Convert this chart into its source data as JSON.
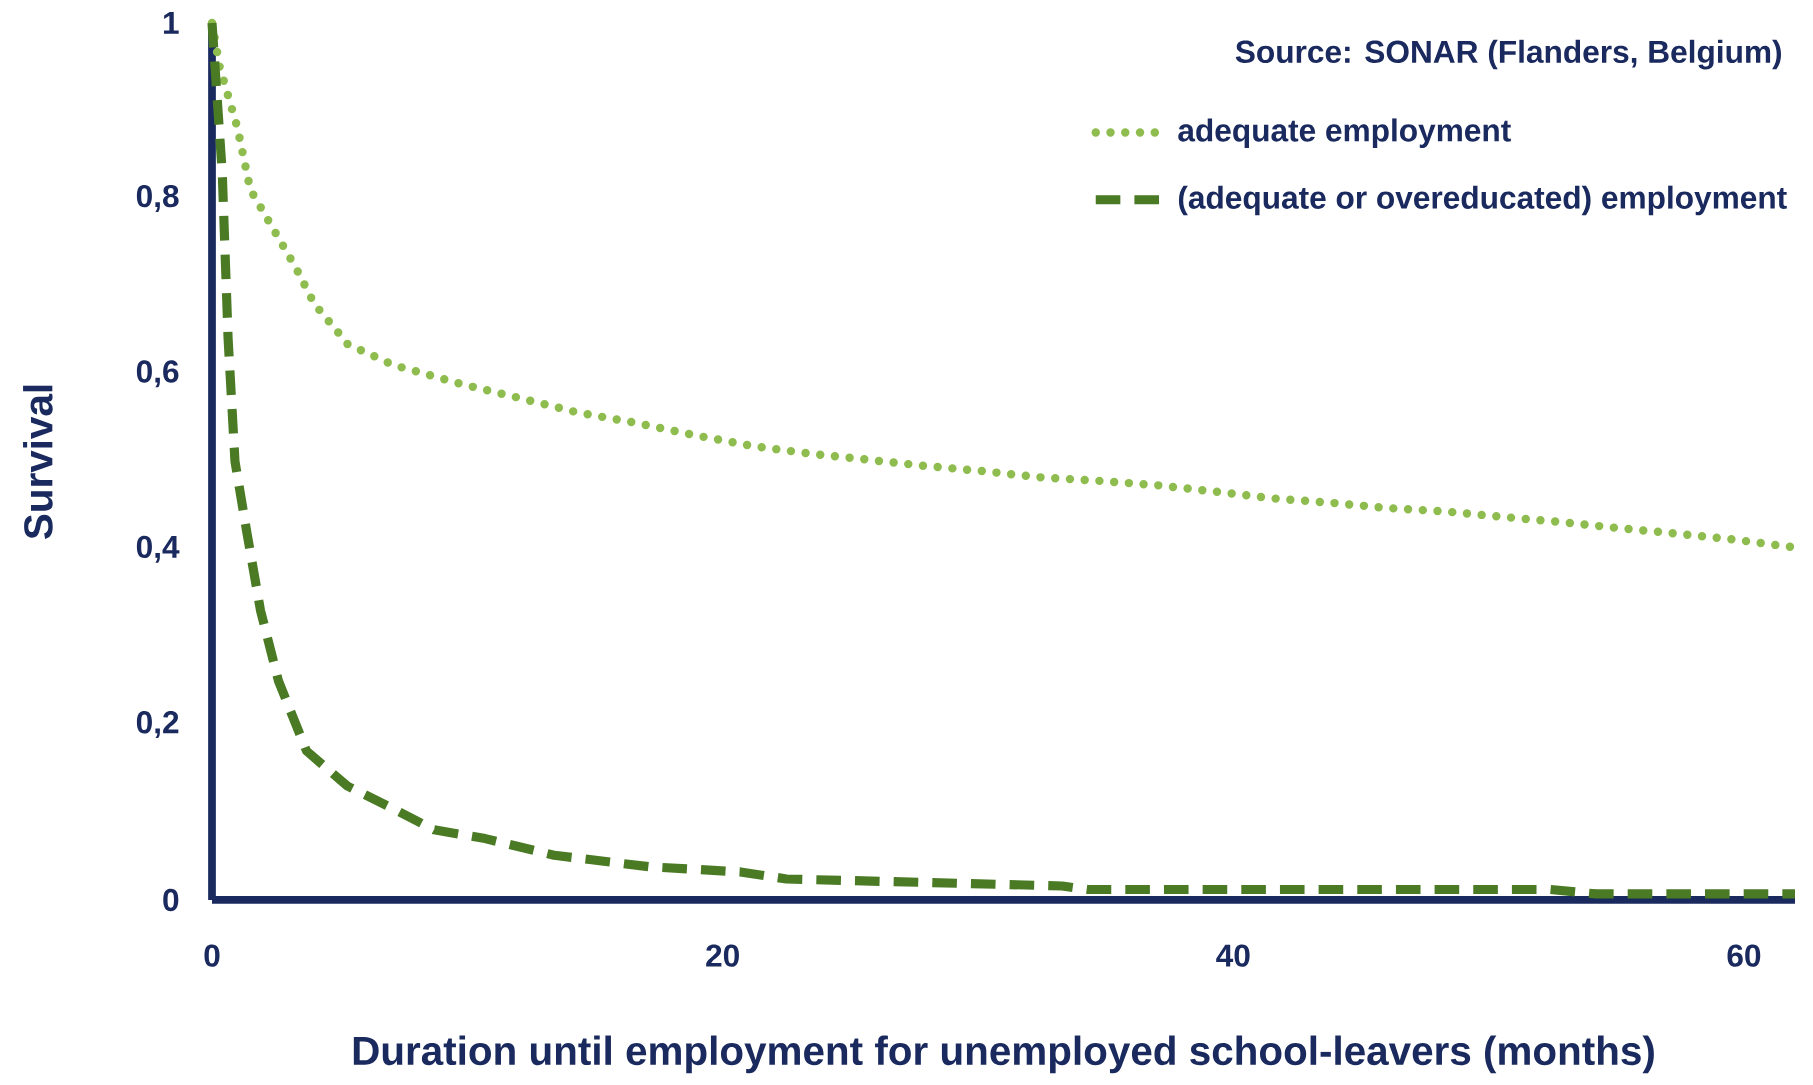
{
  "chart_data": {
    "type": "line",
    "xlabel": "Duration until employment for unemployed school-leavers (months)",
    "ylabel": "Survival",
    "annotations": [
      "Source: SONAR (Flanders, Belgium)"
    ],
    "xlim": [
      0,
      62
    ],
    "ylim": [
      0,
      1
    ],
    "xticks": [
      0,
      20,
      40,
      60
    ],
    "yticks": [
      0,
      {
        "value": 0.2,
        "label": "0,2"
      },
      {
        "value": 0.4,
        "label": "0,4"
      },
      {
        "value": 0.6,
        "label": "0,6"
      },
      {
        "value": 0.8,
        "label": "0,8"
      },
      1
    ],
    "legend": "top right",
    "series": [
      {
        "name": "adequate employment",
        "color": "#8fbc4f",
        "line_style": "dotted",
        "x": [
          0,
          0.3,
          1,
          1.5,
          2.4,
          3.3,
          4,
          5,
          5.3,
          7.1,
          9.8,
          12.1,
          14.3,
          16.6,
          18.9,
          21.1,
          23.4,
          25.7,
          27.9,
          30.2,
          32.4,
          34.7,
          37,
          39.2,
          41.5,
          43.8,
          46,
          48.3,
          50.5,
          52.8,
          55.1,
          57.3,
          59.6,
          62
        ],
        "values": [
          1.0,
          0.95,
          0.88,
          0.81,
          0.765,
          0.72,
          0.68,
          0.645,
          0.634,
          0.61,
          0.588,
          0.572,
          0.556,
          0.544,
          0.53,
          0.518,
          0.509,
          0.502,
          0.495,
          0.489,
          0.482,
          0.478,
          0.473,
          0.466,
          0.458,
          0.453,
          0.447,
          0.443,
          0.437,
          0.431,
          0.424,
          0.418,
          0.411,
          0.402
        ]
      },
      {
        "name": "(adequate or overeducated) employment",
        "color": "#4a7a24",
        "line_style": "dashed",
        "x": [
          0,
          0.4,
          0.63,
          0.9,
          1.36,
          1.9,
          2.6,
          3.7,
          5.3,
          7.1,
          8.7,
          10.7,
          13.4,
          17.1,
          20.7,
          22.5,
          27.9,
          33.3,
          34.3,
          52.4,
          54.2,
          62
        ],
        "values": [
          1.0,
          0.83,
          0.64,
          0.5,
          0.42,
          0.33,
          0.25,
          0.17,
          0.13,
          0.104,
          0.08,
          0.07,
          0.051,
          0.038,
          0.032,
          0.024,
          0.02,
          0.016,
          0.012,
          0.012,
          0.007,
          0.007
        ]
      }
    ]
  }
}
